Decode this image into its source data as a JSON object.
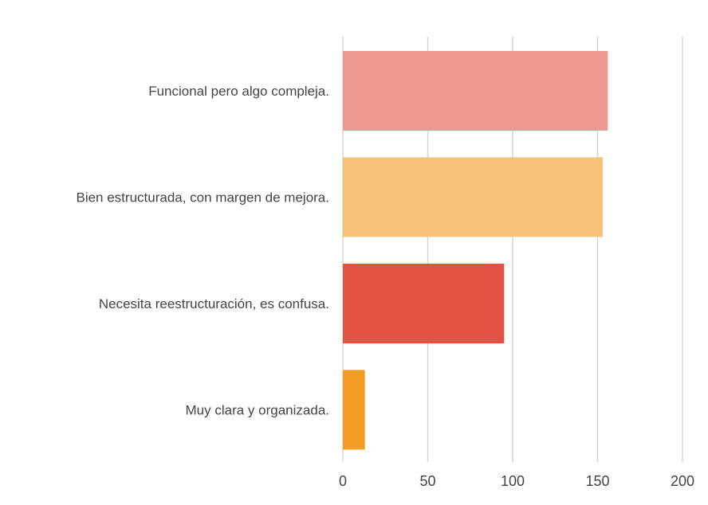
{
  "chart_data": {
    "type": "bar",
    "orientation": "horizontal",
    "categories": [
      "Funcional pero algo compleja.",
      "Bien estructurada, con margen de mejora.",
      "Necesita reestructuración, es confusa.",
      "Muy clara y organizada."
    ],
    "values": [
      156,
      153,
      95,
      13
    ],
    "colors": [
      "#ee998f",
      "#f5c377",
      "#e35344",
      "#f39c26"
    ],
    "xlim": [
      0,
      200
    ],
    "xticks": [
      "0",
      "50",
      "100",
      "150",
      "200"
    ],
    "grid": true,
    "legend": false
  }
}
